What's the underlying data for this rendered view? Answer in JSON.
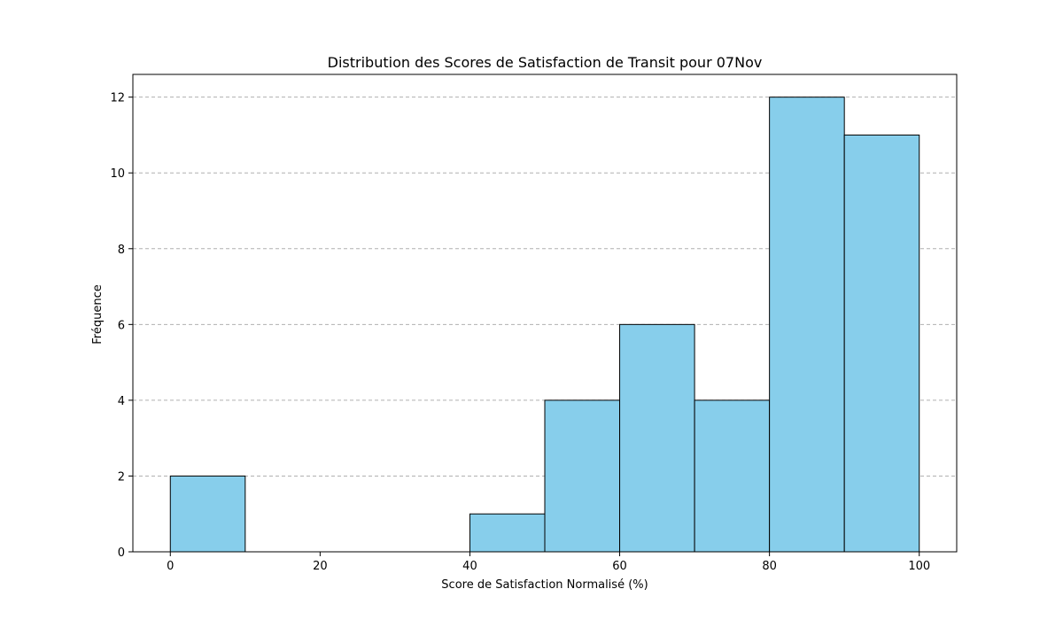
{
  "chart_data": {
    "type": "bar",
    "title": "Distribution des Scores de Satisfaction de Transit pour 07Nov",
    "xlabel": "Score de Satisfaction Normalisé (%)",
    "ylabel": "Fréquence",
    "bins": [
      {
        "start": 0,
        "end": 10,
        "count": 2
      },
      {
        "start": 10,
        "end": 20,
        "count": 0
      },
      {
        "start": 20,
        "end": 30,
        "count": 0
      },
      {
        "start": 30,
        "end": 40,
        "count": 0
      },
      {
        "start": 40,
        "end": 50,
        "count": 1
      },
      {
        "start": 50,
        "end": 60,
        "count": 4
      },
      {
        "start": 60,
        "end": 70,
        "count": 6
      },
      {
        "start": 70,
        "end": 80,
        "count": 4
      },
      {
        "start": 80,
        "end": 90,
        "count": 12
      },
      {
        "start": 90,
        "end": 100,
        "count": 11
      }
    ],
    "xlim": [
      -5,
      105
    ],
    "ylim": [
      0,
      12.6
    ],
    "x_ticks": [
      0,
      20,
      40,
      60,
      80,
      100
    ],
    "y_ticks": [
      0,
      2,
      4,
      6,
      8,
      10,
      12
    ],
    "grid": "horizontal-dashed",
    "bar_color": "#87CEEB",
    "edge_color": "#000000",
    "grid_color": "#b0b0b0"
  }
}
